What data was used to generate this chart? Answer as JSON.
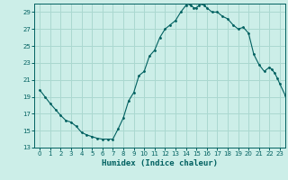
{
  "title": "",
  "xlabel": "Humidex (Indice chaleur)",
  "ylabel": "",
  "bg_color": "#cceee8",
  "grid_color": "#aad8d0",
  "line_color": "#006060",
  "xlim": [
    -0.5,
    23.5
  ],
  "ylim": [
    13,
    30
  ],
  "yticks": [
    13,
    15,
    17,
    19,
    21,
    23,
    25,
    27,
    29
  ],
  "xticks": [
    0,
    1,
    2,
    3,
    4,
    5,
    6,
    7,
    8,
    9,
    10,
    11,
    12,
    13,
    14,
    15,
    16,
    17,
    18,
    19,
    20,
    21,
    22,
    23
  ],
  "x": [
    0,
    0.5,
    1.0,
    1.5,
    2.0,
    2.5,
    3.0,
    3.5,
    4.0,
    4.5,
    5.0,
    5.5,
    6.0,
    6.5,
    7.0,
    7.5,
    8.0,
    8.5,
    9.0,
    9.5,
    10.0,
    10.5,
    11.0,
    11.5,
    12.0,
    12.5,
    13.0,
    13.5,
    14.0,
    14.25,
    14.5,
    14.75,
    15.0,
    15.25,
    15.5,
    15.75,
    16.0,
    16.5,
    17.0,
    17.5,
    18.0,
    18.5,
    19.0,
    19.5,
    20.0,
    20.5,
    21.0,
    21.5,
    22.0,
    22.25,
    22.5,
    22.75,
    23.0,
    23.5
  ],
  "y": [
    19.8,
    19.0,
    18.2,
    17.5,
    16.8,
    16.2,
    16.0,
    15.5,
    14.8,
    14.5,
    14.3,
    14.1,
    14.0,
    14.0,
    14.0,
    15.2,
    16.5,
    18.5,
    19.5,
    21.5,
    22.0,
    23.8,
    24.5,
    26.0,
    27.0,
    27.5,
    28.0,
    29.0,
    29.8,
    30.0,
    29.8,
    29.5,
    29.5,
    29.8,
    30.0,
    29.8,
    29.5,
    29.0,
    29.0,
    28.5,
    28.2,
    27.5,
    27.0,
    27.2,
    26.5,
    24.0,
    22.8,
    22.0,
    22.5,
    22.2,
    21.8,
    21.2,
    20.5,
    19.2
  ]
}
